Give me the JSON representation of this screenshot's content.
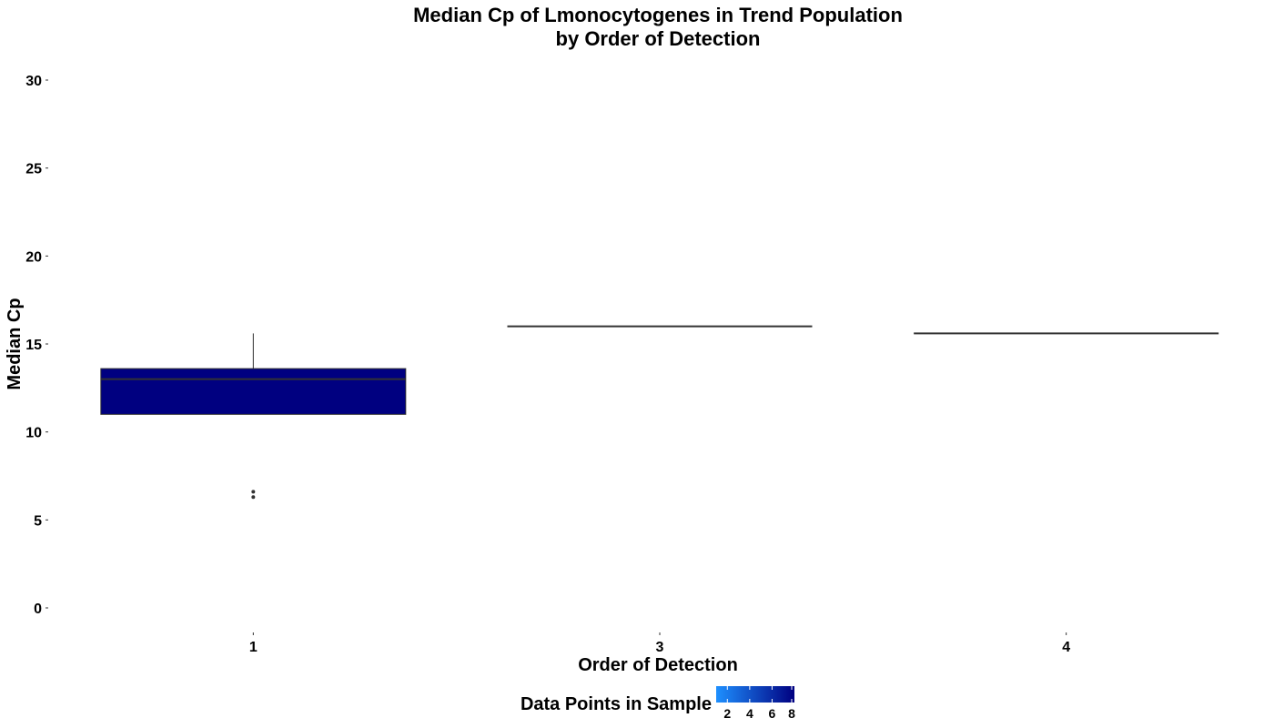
{
  "chart_data": {
    "type": "box",
    "title": [
      "Median Cp of Lmonocytogenes in Trend Population",
      "by Order of Detection"
    ],
    "xlabel": "Order of Detection",
    "ylabel": "Median Cp",
    "categories": [
      "1",
      "3",
      "4"
    ],
    "ylim": [
      0,
      30
    ],
    "yticks": [
      0,
      5,
      10,
      15,
      20,
      25,
      30
    ],
    "grid": false,
    "boxes": [
      {
        "category": "1",
        "min": 11.0,
        "q1": 11.0,
        "median": 13.0,
        "q3": 13.6,
        "max": 15.6,
        "outliers": [
          6.3,
          6.6
        ],
        "data_points": 8
      },
      {
        "category": "3",
        "min": 16.0,
        "q1": 16.0,
        "median": 16.0,
        "q3": 16.0,
        "max": 16.0,
        "outliers": [],
        "data_points": 1
      },
      {
        "category": "4",
        "min": 15.6,
        "q1": 15.6,
        "median": 15.6,
        "q3": 15.6,
        "max": 15.6,
        "outliers": [],
        "data_points": 1
      }
    ],
    "legend": {
      "title": "Data Points in Sample",
      "position": "bottom",
      "ticks": [
        2,
        4,
        6,
        8
      ],
      "range": [
        1,
        8
      ],
      "color_low": "#1E90FF",
      "color_high": "#000080"
    }
  }
}
